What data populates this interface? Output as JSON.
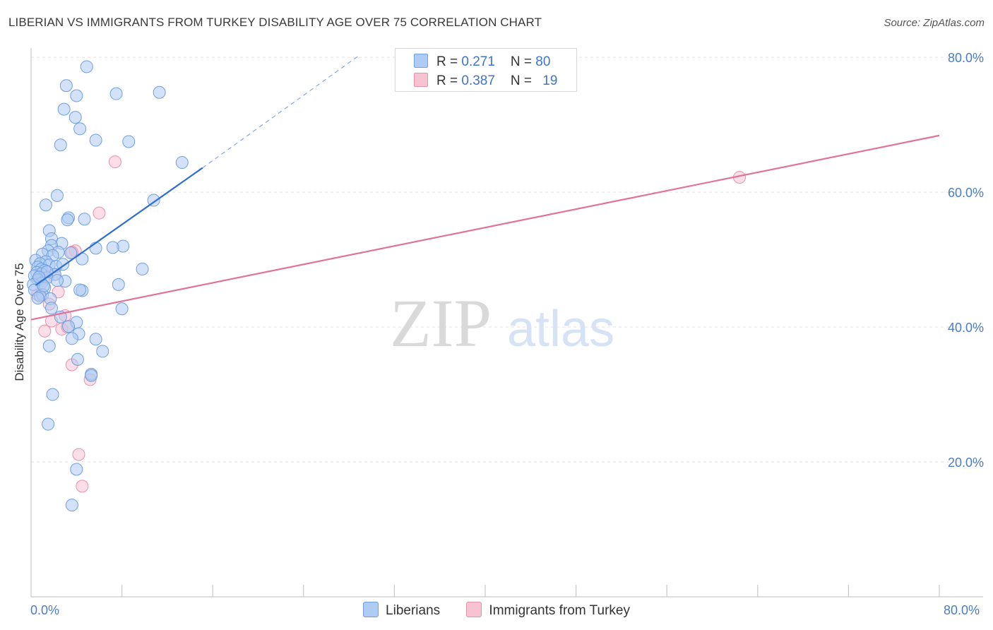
{
  "header": {
    "title": "LIBERIAN VS IMMIGRANTS FROM TURKEY DISABILITY AGE OVER 75 CORRELATION CHART",
    "source": "Source: ZipAtlas.com"
  },
  "watermark": {
    "zip": "ZIP",
    "atlas": "atlas"
  },
  "colors": {
    "liberians_fill": "#aecbf3",
    "liberians_stroke": "#6f9fe0",
    "liberians_line": "#2f6fd0",
    "turkey_fill": "#f7c3d3",
    "turkey_stroke": "#e891ab",
    "turkey_line": "#e0739a",
    "tick_label": "#4a7cc4",
    "grid": "#e2e2e2"
  },
  "legend": {
    "rows": [
      {
        "r_label": "R = ",
        "r_value": "0.271",
        "n_label": "N = ",
        "n_value": "80"
      },
      {
        "r_label": "R = ",
        "r_value": "0.387",
        "n_label": "N = ",
        "n_value": "19"
      }
    ]
  },
  "chart_data": {
    "type": "scatter",
    "title": "LIBERIAN VS IMMIGRANTS FROM TURKEY DISABILITY AGE OVER 75 CORRELATION CHART",
    "xlabel": "",
    "ylabel": "Disability Age Over 75",
    "xlim": [
      0,
      80
    ],
    "ylim": [
      0,
      82
    ],
    "x_tick_labels": [
      "0.0%",
      "80.0%"
    ],
    "y_ticks": [
      20,
      40,
      60,
      80
    ],
    "y_tick_labels": [
      "20.0%",
      "40.0%",
      "60.0%",
      "80.0%"
    ],
    "grid": true,
    "legend_position": "top-center",
    "series": [
      {
        "name": "Liberians",
        "r": 0.271,
        "n": 80,
        "points": [
          [
            4.9,
            78.6
          ],
          [
            3.1,
            75.8
          ],
          [
            7.5,
            74.6
          ],
          [
            4.0,
            74.3
          ],
          [
            11.3,
            74.8
          ],
          [
            2.9,
            72.3
          ],
          [
            3.9,
            71.1
          ],
          [
            4.3,
            69.4
          ],
          [
            5.7,
            67.7
          ],
          [
            8.6,
            67.5
          ],
          [
            2.6,
            67.0
          ],
          [
            13.3,
            64.4
          ],
          [
            2.3,
            59.5
          ],
          [
            10.8,
            58.8
          ],
          [
            1.3,
            58.1
          ],
          [
            3.3,
            56.2
          ],
          [
            4.7,
            56.0
          ],
          [
            3.2,
            55.9
          ],
          [
            1.6,
            54.3
          ],
          [
            1.8,
            53.1
          ],
          [
            2.7,
            52.4
          ],
          [
            1.8,
            52.1
          ],
          [
            8.1,
            52.0
          ],
          [
            5.7,
            51.7
          ],
          [
            7.2,
            51.8
          ],
          [
            1.5,
            51.3
          ],
          [
            2.4,
            51.1
          ],
          [
            1.0,
            50.8
          ],
          [
            1.9,
            50.6
          ],
          [
            4.5,
            50.1
          ],
          [
            0.4,
            49.9
          ],
          [
            1.3,
            49.7
          ],
          [
            0.8,
            49.4
          ],
          [
            1.6,
            49.2
          ],
          [
            2.2,
            49.0
          ],
          [
            0.6,
            48.9
          ],
          [
            0.9,
            48.6
          ],
          [
            1.2,
            48.4
          ],
          [
            9.8,
            48.6
          ],
          [
            0.5,
            48.1
          ],
          [
            0.9,
            47.9
          ],
          [
            2.1,
            47.8
          ],
          [
            0.3,
            47.6
          ],
          [
            1.4,
            47.3
          ],
          [
            0.6,
            47.0
          ],
          [
            3.0,
            46.8
          ],
          [
            2.3,
            46.9
          ],
          [
            0.9,
            46.5
          ],
          [
            0.2,
            46.3
          ],
          [
            7.7,
            46.3
          ],
          [
            1.2,
            45.8
          ],
          [
            0.3,
            45.5
          ],
          [
            4.5,
            45.4
          ],
          [
            4.3,
            45.5
          ],
          [
            1.0,
            44.8
          ],
          [
            0.8,
            44.6
          ],
          [
            0.6,
            44.3
          ],
          [
            1.7,
            44.2
          ],
          [
            8.0,
            42.7
          ],
          [
            1.8,
            42.8
          ],
          [
            2.6,
            41.5
          ],
          [
            4.0,
            40.7
          ],
          [
            3.3,
            40.1
          ],
          [
            4.2,
            39.0
          ],
          [
            3.6,
            38.3
          ],
          [
            5.7,
            38.2
          ],
          [
            1.6,
            37.2
          ],
          [
            6.3,
            36.4
          ],
          [
            4.1,
            35.2
          ],
          [
            5.3,
            33.0
          ],
          [
            5.3,
            32.8
          ],
          [
            1.9,
            30.0
          ],
          [
            1.5,
            25.6
          ],
          [
            4.0,
            18.9
          ],
          [
            3.6,
            13.6
          ],
          [
            1.4,
            48.2
          ],
          [
            2.8,
            49.3
          ],
          [
            0.7,
            47.4
          ],
          [
            1.1,
            46.1
          ],
          [
            3.5,
            51.0
          ]
        ],
        "trend_solid": [
          [
            0.4,
            46.2
          ],
          [
            15.1,
            63.6
          ]
        ],
        "trend_dashed": [
          [
            15.1,
            63.6
          ],
          [
            29.0,
            80.4
          ]
        ]
      },
      {
        "name": "Immigrants from Turkey",
        "r": 0.387,
        "n": 19,
        "points": [
          [
            7.4,
            64.5
          ],
          [
            6.0,
            56.9
          ],
          [
            3.9,
            51.3
          ],
          [
            3.6,
            51.1
          ],
          [
            1.1,
            46.9
          ],
          [
            2.4,
            45.2
          ],
          [
            0.6,
            44.8
          ],
          [
            1.6,
            43.4
          ],
          [
            1.8,
            40.9
          ],
          [
            3.0,
            41.7
          ],
          [
            1.2,
            39.4
          ],
          [
            2.7,
            39.7
          ],
          [
            3.2,
            40.0
          ],
          [
            3.6,
            34.4
          ],
          [
            5.2,
            32.2
          ],
          [
            4.2,
            21.1
          ],
          [
            4.5,
            16.4
          ],
          [
            62.4,
            62.2
          ],
          [
            2.1,
            47.8
          ]
        ],
        "trend_solid": [
          [
            0.0,
            41.1
          ],
          [
            80.0,
            68.4
          ]
        ]
      }
    ]
  },
  "bottom_legend": {
    "items": [
      {
        "label": "Liberians"
      },
      {
        "label": "Immigrants from Turkey"
      }
    ]
  }
}
